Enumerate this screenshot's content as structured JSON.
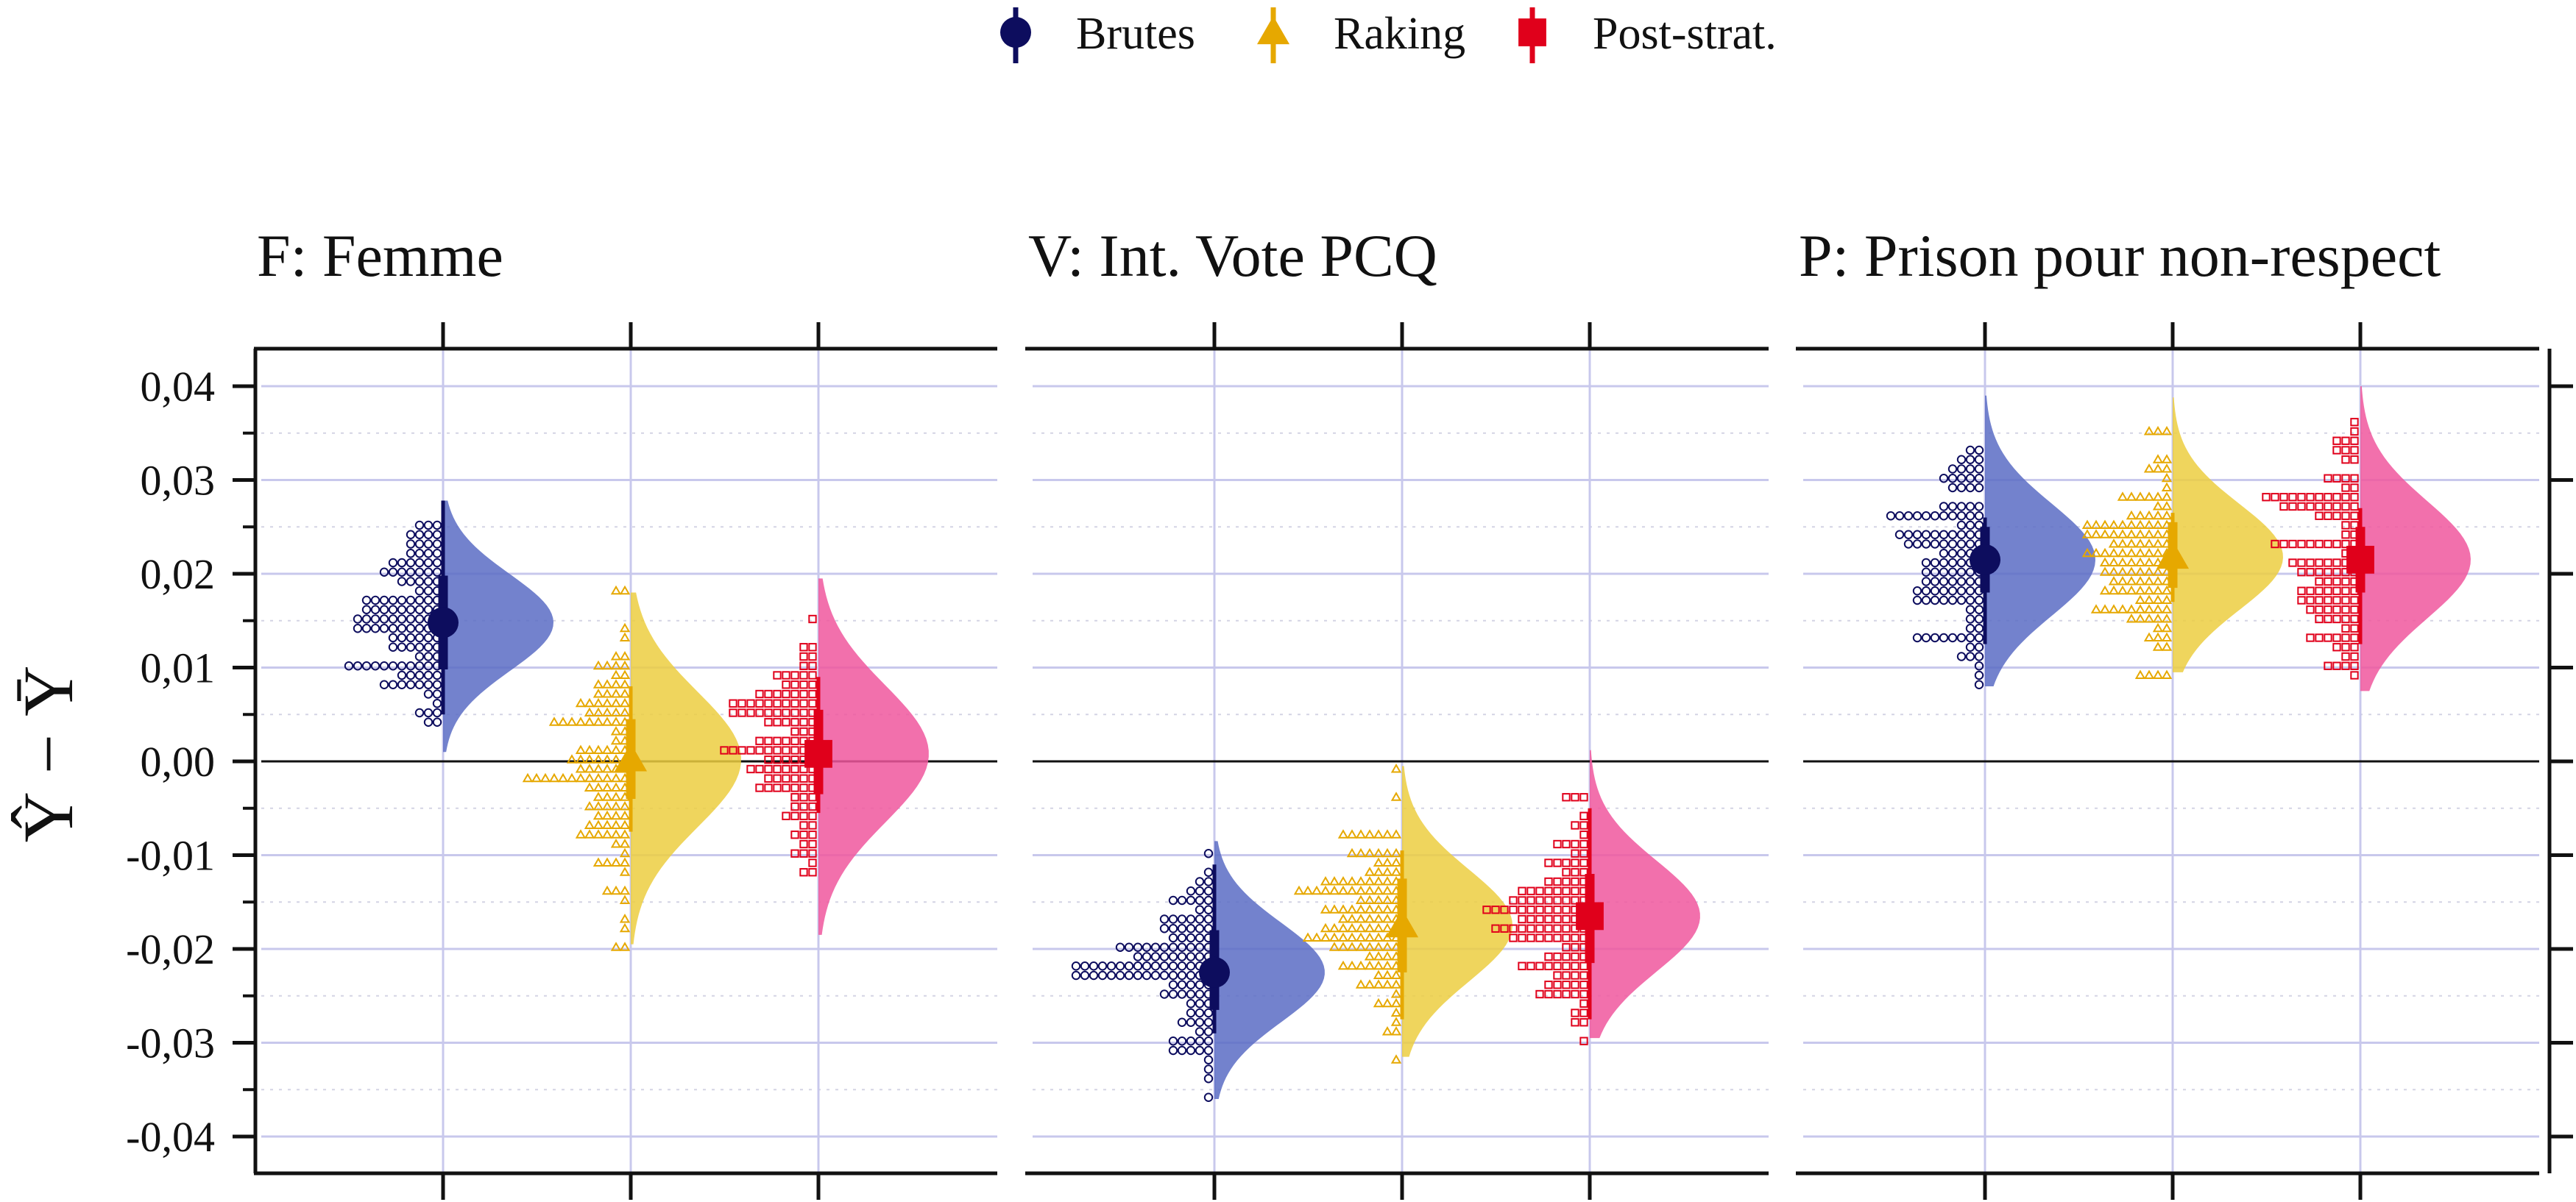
{
  "chart_data": {
    "type": "raincloud",
    "ylabel": "Ŷ − Ȳ",
    "ylim": [
      -0.042,
      0.04
    ],
    "y_ticks": [
      0.04,
      0.03,
      0.02,
      0.01,
      0.0,
      -0.01,
      -0.02,
      -0.03,
      -0.04
    ],
    "y_tick_labels": [
      "0,04",
      "0,03",
      "0,02",
      "0,01",
      "0,00",
      "-0,01",
      "-0,02",
      "-0,03",
      "-0,04"
    ],
    "reference_line": 0,
    "grid": true,
    "legend_position": "top",
    "legend": [
      {
        "name": "Brutes",
        "marker": "circle",
        "color": "#0d0d5e"
      },
      {
        "name": "Raking",
        "marker": "triangle",
        "color": "#e6a800"
      },
      {
        "name": "Post-strat.",
        "marker": "square",
        "color": "#e0001b"
      }
    ],
    "series_colors": {
      "Brutes": {
        "point": "#0d0d5e",
        "cloud": "#5a6cc4"
      },
      "Raking": {
        "point": "#e6a800",
        "cloud": "#ecce41"
      },
      "Post-strat.": {
        "point": "#e0001b",
        "cloud": "#f0579e"
      }
    },
    "facets": [
      {
        "title": "F: Femme",
        "series": [
          {
            "name": "Brutes",
            "estimate": 0.0148,
            "ci50": [
              0.0098,
              0.0198
            ],
            "ci95": [
              0.005,
              0.0278
            ],
            "min": 0.001,
            "max": 0.0278
          },
          {
            "name": "Raking",
            "estimate": 0.0002,
            "ci50": [
              -0.004,
              0.0045
            ],
            "ci95": [
              -0.0075,
              0.008
            ],
            "min": -0.0195,
            "max": 0.018
          },
          {
            "name": "Post-strat.",
            "estimate": 0.0008,
            "ci50": [
              -0.0035,
              0.0055
            ],
            "ci95": [
              -0.0055,
              0.009
            ],
            "min": -0.0185,
            "max": 0.0195
          }
        ]
      },
      {
        "title": "V: Int. Vote PCQ",
        "series": [
          {
            "name": "Brutes",
            "estimate": -0.0225,
            "ci50": [
              -0.0265,
              -0.018
            ],
            "ci95": [
              -0.029,
              -0.011
            ],
            "min": -0.036,
            "max": -0.0085
          },
          {
            "name": "Raking",
            "estimate": -0.0175,
            "ci50": [
              -0.0225,
              -0.0125
            ],
            "ci95": [
              -0.0275,
              -0.0095
            ],
            "min": -0.0315,
            "max": -0.0005
          },
          {
            "name": "Post-strat.",
            "estimate": -0.0165,
            "ci50": [
              -0.0215,
              -0.012
            ],
            "ci95": [
              -0.0275,
              -0.005
            ],
            "min": -0.0295,
            "max": 0.0012
          }
        ]
      },
      {
        "title": "P: Prison pour non-respect",
        "series": [
          {
            "name": "Brutes",
            "estimate": 0.0215,
            "ci50": [
              0.018,
              0.025
            ],
            "ci95": [
              0.0125,
              0.026
            ],
            "min": 0.008,
            "max": 0.039
          },
          {
            "name": "Raking",
            "estimate": 0.0218,
            "ci50": [
              0.0185,
              0.0255
            ],
            "ci95": [
              0.017,
              0.0265
            ],
            "min": 0.0095,
            "max": 0.0388
          },
          {
            "name": "Post-strat.",
            "estimate": 0.0215,
            "ci50": [
              0.018,
              0.025
            ],
            "ci95": [
              0.0125,
              0.027
            ],
            "min": 0.0075,
            "max": 0.04
          }
        ]
      }
    ]
  }
}
